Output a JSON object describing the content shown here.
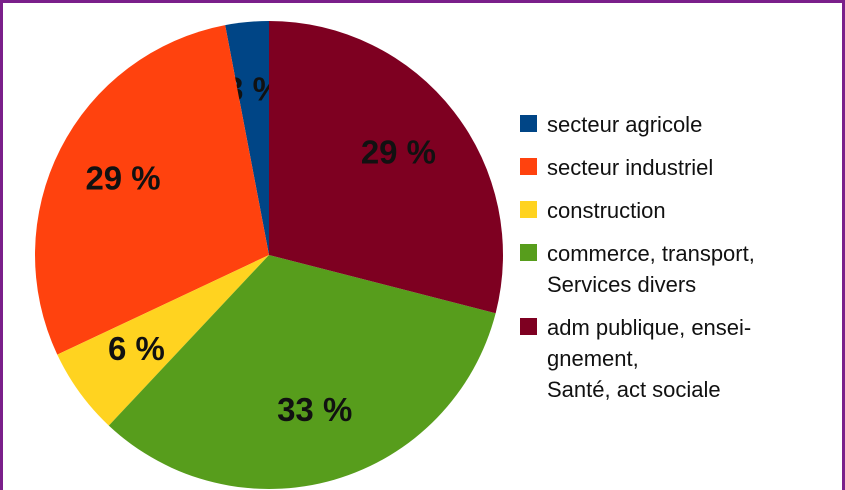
{
  "chart_data": {
    "type": "pie",
    "categories": [
      "secteur agricole",
      "secteur industriel",
      "construction",
      "commerce, transport,\nServices divers",
      "adm publique, ensei-\ngnement,\nSanté, act sociale"
    ],
    "values": [
      3,
      29,
      6,
      33,
      29
    ],
    "value_labels": [
      "3 %",
      "29 %",
      "6 %",
      "33 %",
      "29 %"
    ],
    "colors": [
      "#004586",
      "#ff420e",
      "#ffd320",
      "#579d1c",
      "#7e0021"
    ],
    "direction": "counterclockwise",
    "legend": "right"
  }
}
